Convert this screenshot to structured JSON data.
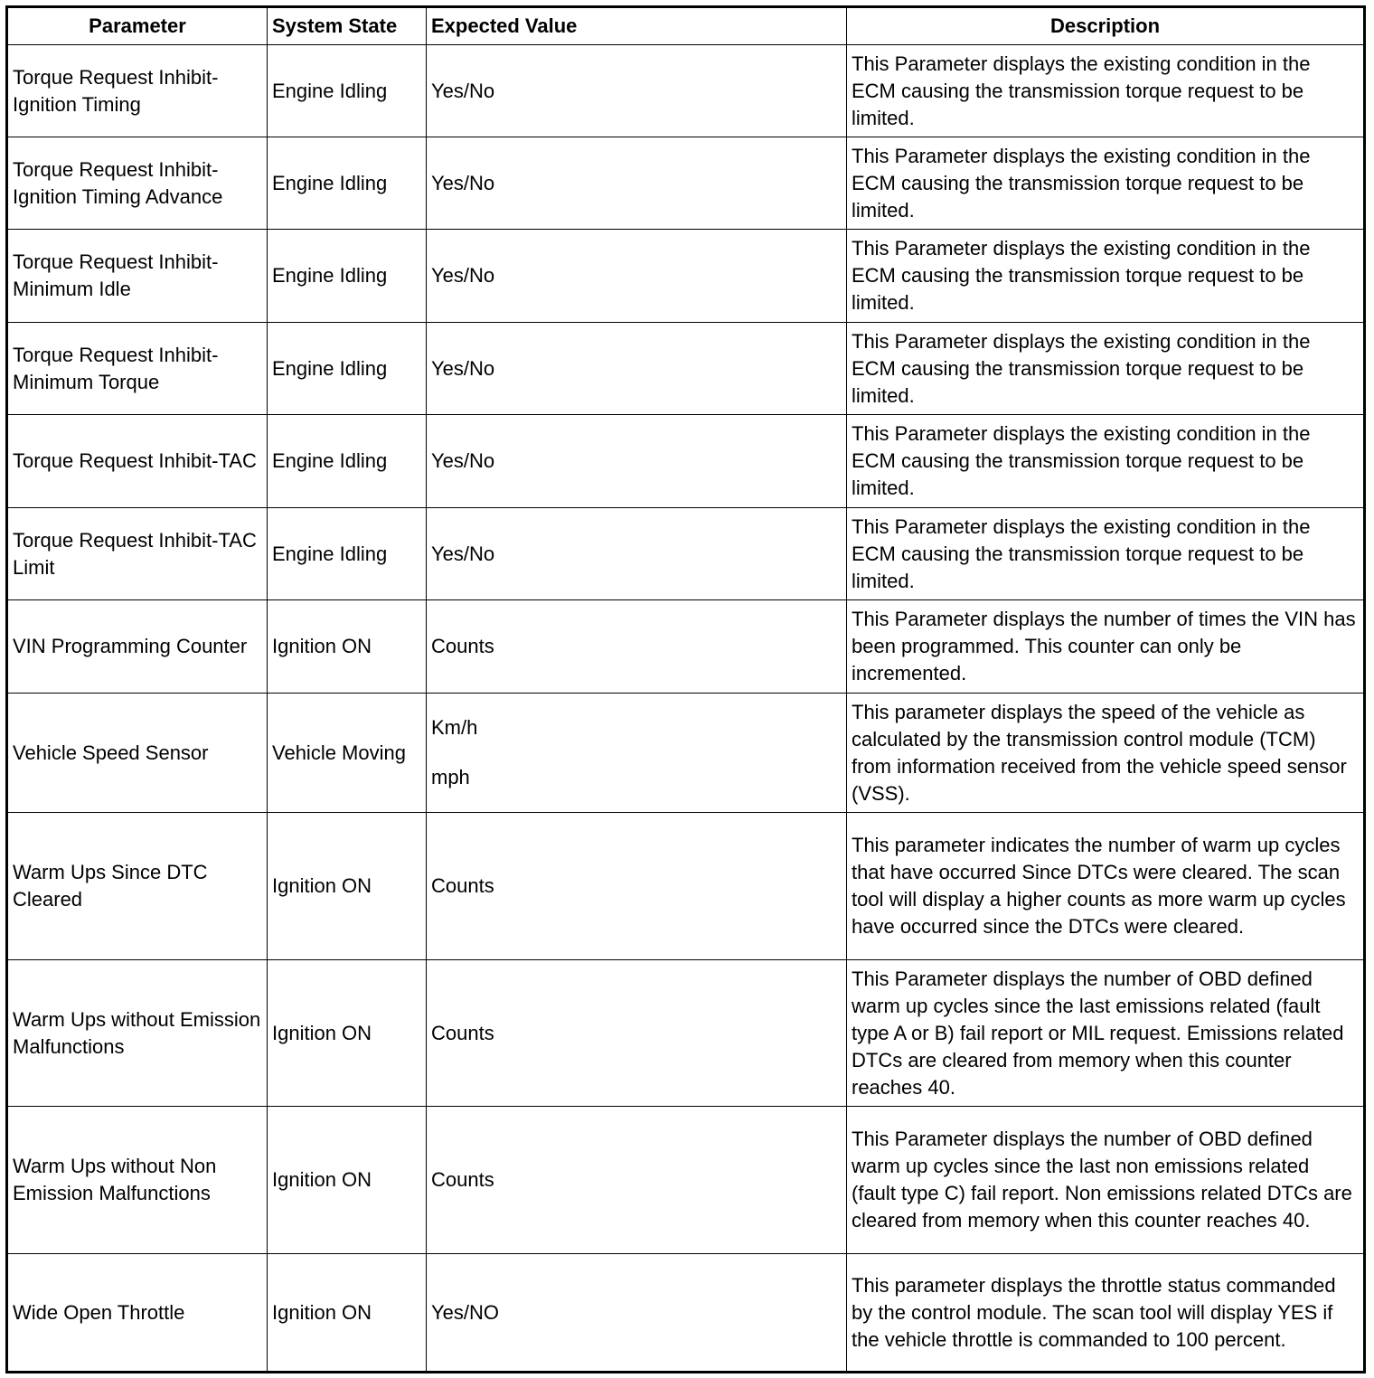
{
  "headers": [
    "Parameter",
    "System State",
    "Expected Value",
    "Description"
  ],
  "rows": [
    {
      "parameter": "Torque Request Inhibit-Ignition Timing",
      "state": "Engine Idling",
      "expected": [
        "Yes/No"
      ],
      "description": "This Parameter displays the existing condition in the ECM causing the transmission torque request to be limited."
    },
    {
      "parameter": "Torque Request Inhibit-Ignition Timing Advance",
      "state": "Engine Idling",
      "expected": [
        "Yes/No"
      ],
      "description": "This Parameter displays the existing condition in the ECM causing the transmission torque request to be limited."
    },
    {
      "parameter": "Torque Request Inhibit-Minimum Idle",
      "state": "Engine Idling",
      "expected": [
        "Yes/No"
      ],
      "description": "This Parameter displays the existing condition in the ECM causing the transmission torque request to be limited."
    },
    {
      "parameter": "Torque Request Inhibit-Minimum Torque",
      "state": "Engine Idling",
      "expected": [
        "Yes/No"
      ],
      "description": "This Parameter displays the existing condition in the ECM causing the transmission torque request to be limited."
    },
    {
      "parameter": "Torque Request Inhibit-TAC",
      "state": "Engine Idling",
      "expected": [
        "Yes/No"
      ],
      "description": "This Parameter displays the existing condition in the ECM causing the transmission torque request to be limited."
    },
    {
      "parameter": "Torque Request Inhibit-TAC Limit",
      "state": "Engine Idling",
      "expected": [
        "Yes/No"
      ],
      "description": "This Parameter displays the existing condition in the ECM causing the transmission torque request to be limited."
    },
    {
      "parameter": "VIN Programming Counter",
      "state": "Ignition ON",
      "expected": [
        "Counts"
      ],
      "description": "This Parameter displays the number of times the VIN has been programmed. This counter can only be incremented."
    },
    {
      "parameter": "Vehicle Speed Sensor",
      "state": "Vehicle Moving",
      "expected": [
        "Km/h",
        "mph"
      ],
      "description": "This parameter displays the speed of the vehicle as calculated by the transmission control module (TCM) from information received from the vehicle speed sensor (VSS)."
    },
    {
      "parameter": "Warm Ups Since DTC Cleared",
      "state": "Ignition ON",
      "expected": [
        "Counts"
      ],
      "description": "This parameter indicates the number of warm up cycles that have occurred Since DTCs were cleared. The scan tool will display a higher counts as more warm up cycles have occurred since the DTCs were cleared."
    },
    {
      "parameter": "Warm Ups without Emission Malfunctions",
      "state": "Ignition ON",
      "expected": [
        "Counts"
      ],
      "description": "This Parameter displays the number of OBD defined warm up cycles since the last emissions related (fault type A or B) fail report or MIL request. Emissions related DTCs are cleared from memory when this counter reaches 40."
    },
    {
      "parameter": "Warm Ups without Non Emission Malfunctions",
      "state": "Ignition ON",
      "expected": [
        "Counts"
      ],
      "description": "This Parameter displays the number of OBD defined warm up cycles since the last non emissions related (fault type C) fail report. Non emissions related DTCs are cleared from memory when this counter reaches 40."
    },
    {
      "parameter": "Wide Open Throttle",
      "state": "Ignition ON",
      "expected": [
        "Yes/NO"
      ],
      "description": "This parameter displays the throttle status commanded by the control module. The scan tool will display YES if the vehicle throttle is commanded to 100 percent."
    }
  ]
}
